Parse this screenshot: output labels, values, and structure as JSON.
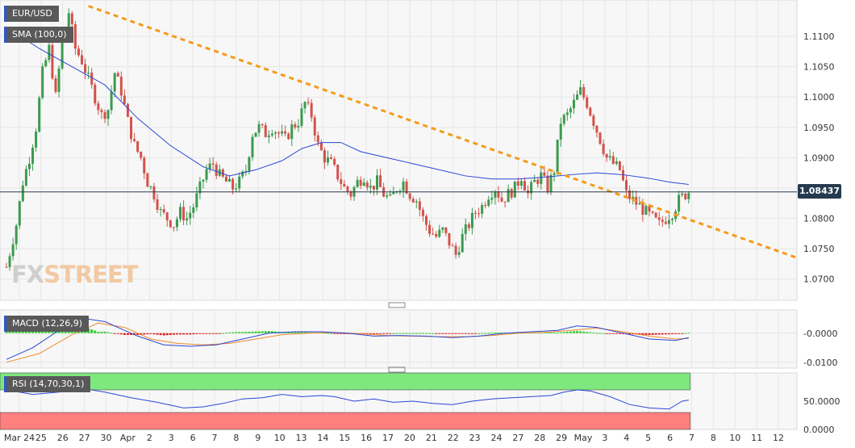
{
  "symbol": "EUR/USD",
  "indicators": {
    "sma_label": "SMA (100,0)",
    "macd_label": "MACD (12,26,9)",
    "rsi_label": "RSI (14,70,30,1)"
  },
  "logo": {
    "part1": "FX",
    "part2": "STREET"
  },
  "current_price": "1.08437",
  "colors": {
    "background": "#f7f7f7",
    "grid": "#e6e6e6",
    "bull_candle": "#3c9a4f",
    "bear_candle": "#d2524a",
    "sma_line": "#2b46d6",
    "trendline": "#f59a1a",
    "macd_line": "#2b46d6",
    "signal_line": "#f08a2a",
    "hist_positive": "#33cc33",
    "hist_negative": "#e02020",
    "rsi_overbought_zone": "#7ee87e",
    "rsi_oversold_zone": "#ff7f7f",
    "price_line": "#263a4f"
  },
  "chart_data": [
    {
      "type": "candlestick",
      "title": "EUR/USD",
      "x_tick_labels": [
        "Mar 24",
        "25",
        "26",
        "27",
        "30",
        "Apr",
        "2",
        "3",
        "6",
        "7",
        "8",
        "9",
        "10",
        "13",
        "14",
        "15",
        "16",
        "17",
        "20",
        "21",
        "22",
        "23",
        "24",
        "27",
        "28",
        "29",
        "May",
        "3",
        "4",
        "5",
        "6",
        "7",
        "8",
        "10",
        "11",
        "12"
      ],
      "y_tick_labels": [
        "1.1100",
        "1.1050",
        "1.1000",
        "1.0950",
        "1.0900",
        "1.0850",
        "1.0800",
        "1.0750",
        "1.0700"
      ],
      "ylim": [
        1.0665,
        1.116
      ],
      "approx_closes": [
        [
          0,
          1.072
        ],
        [
          3,
          1.079
        ],
        [
          5,
          1.086
        ],
        [
          7,
          1.09
        ],
        [
          9,
          1.095
        ],
        [
          11,
          1.104
        ],
        [
          13,
          1.108
        ],
        [
          15,
          1.1
        ],
        [
          17,
          1.109
        ],
        [
          19,
          1.114
        ],
        [
          21,
          1.108
        ],
        [
          23,
          1.106
        ],
        [
          25,
          1.103
        ],
        [
          27,
          1.1
        ],
        [
          29,
          1.097
        ],
        [
          31,
          1.098
        ],
        [
          33,
          1.104
        ],
        [
          35,
          1.101
        ],
        [
          37,
          1.096
        ],
        [
          39,
          1.092
        ],
        [
          41,
          1.09
        ],
        [
          43,
          1.086
        ],
        [
          45,
          1.084
        ],
        [
          47,
          1.081
        ],
        [
          49,
          1.08
        ],
        [
          51,
          1.079
        ],
        [
          53,
          1.081
        ],
        [
          55,
          1.08
        ],
        [
          57,
          1.082
        ],
        [
          59,
          1.085
        ],
        [
          61,
          1.088
        ],
        [
          63,
          1.089
        ],
        [
          65,
          1.087
        ],
        [
          67,
          1.086
        ],
        [
          69,
          1.085
        ],
        [
          71,
          1.086
        ],
        [
          73,
          1.088
        ],
        [
          75,
          1.094
        ],
        [
          77,
          1.095
        ],
        [
          79,
          1.094
        ],
        [
          81,
          1.095
        ],
        [
          83,
          1.094
        ],
        [
          85,
          1.093
        ],
        [
          87,
          1.095
        ],
        [
          89,
          1.096
        ],
        [
          91,
          1.099
        ],
        [
          93,
          1.097
        ],
        [
          95,
          1.092
        ],
        [
          97,
          1.09
        ],
        [
          99,
          1.089
        ],
        [
          101,
          1.087
        ],
        [
          103,
          1.085
        ],
        [
          105,
          1.084
        ],
        [
          107,
          1.086
        ],
        [
          109,
          1.087
        ],
        [
          111,
          1.085
        ],
        [
          113,
          1.086
        ],
        [
          115,
          1.084
        ],
        [
          117,
          1.083
        ],
        [
          119,
          1.085
        ],
        [
          121,
          1.086
        ],
        [
          123,
          1.084
        ],
        [
          125,
          1.083
        ],
        [
          127,
          1.08
        ],
        [
          129,
          1.078
        ],
        [
          131,
          1.077
        ],
        [
          133,
          1.078
        ],
        [
          135,
          1.076
        ],
        [
          137,
          1.074
        ],
        [
          139,
          1.077
        ],
        [
          141,
          1.079
        ],
        [
          143,
          1.081
        ],
        [
          145,
          1.082
        ],
        [
          147,
          1.084
        ],
        [
          149,
          1.085
        ],
        [
          151,
          1.083
        ],
        [
          153,
          1.084
        ],
        [
          155,
          1.085
        ],
        [
          157,
          1.087
        ],
        [
          159,
          1.084
        ],
        [
          161,
          1.086
        ],
        [
          163,
          1.087
        ],
        [
          165,
          1.085
        ],
        [
          167,
          1.088
        ],
        [
          169,
          1.096
        ],
        [
          171,
          1.097
        ],
        [
          173,
          1.099
        ],
        [
          175,
          1.101
        ],
        [
          177,
          1.099
        ],
        [
          179,
          1.096
        ],
        [
          181,
          1.093
        ],
        [
          183,
          1.09
        ],
        [
          185,
          1.089
        ],
        [
          187,
          1.088
        ],
        [
          189,
          1.084
        ],
        [
          191,
          1.083
        ],
        [
          193,
          1.082
        ],
        [
          195,
          1.081
        ],
        [
          197,
          1.08
        ],
        [
          199,
          1.079
        ],
        [
          201,
          1.08
        ],
        [
          203,
          1.081
        ],
        [
          205,
          1.083
        ],
        [
          207,
          1.084
        ],
        [
          208,
          1.0844
        ]
      ],
      "sma_100": [
        [
          0,
          1.1115
        ],
        [
          10,
          1.108
        ],
        [
          20,
          1.105
        ],
        [
          30,
          1.102
        ],
        [
          40,
          1.0965
        ],
        [
          50,
          1.092
        ],
        [
          60,
          1.0885
        ],
        [
          68,
          1.087
        ],
        [
          76,
          1.088
        ],
        [
          84,
          1.0895
        ],
        [
          90,
          1.0915
        ],
        [
          96,
          1.0925
        ],
        [
          102,
          1.0925
        ],
        [
          108,
          1.091
        ],
        [
          116,
          1.09
        ],
        [
          124,
          1.089
        ],
        [
          132,
          1.088
        ],
        [
          140,
          1.087
        ],
        [
          148,
          1.0865
        ],
        [
          156,
          1.0865
        ],
        [
          164,
          1.0868
        ],
        [
          172,
          1.0872
        ],
        [
          180,
          1.0875
        ],
        [
          188,
          1.0872
        ],
        [
          196,
          1.0866
        ],
        [
          202,
          1.086
        ],
        [
          208,
          1.0856
        ]
      ],
      "trendline": [
        [
          25,
          1.115
        ],
        [
          241,
          1.0735
        ]
      ]
    },
    {
      "type": "macd",
      "title": "MACD (12,26,9)",
      "y_tick_labels": [
        "-0.0000",
        "-0.0100"
      ],
      "ylim": [
        -0.012,
        0.008
      ],
      "macd": [
        [
          0,
          -0.009
        ],
        [
          8,
          -0.005
        ],
        [
          16,
          0.001
        ],
        [
          24,
          0.005
        ],
        [
          30,
          0.004
        ],
        [
          40,
          -0.001
        ],
        [
          48,
          -0.004
        ],
        [
          56,
          -0.0045
        ],
        [
          64,
          -0.004
        ],
        [
          72,
          -0.002
        ],
        [
          80,
          0.0
        ],
        [
          88,
          0.0005
        ],
        [
          96,
          0.0005
        ],
        [
          104,
          0.0
        ],
        [
          112,
          -0.001
        ],
        [
          120,
          -0.0008
        ],
        [
          128,
          -0.001
        ],
        [
          136,
          -0.0015
        ],
        [
          144,
          -0.001
        ],
        [
          152,
          0.0
        ],
        [
          160,
          0.0005
        ],
        [
          168,
          0.001
        ],
        [
          174,
          0.0025
        ],
        [
          180,
          0.002
        ],
        [
          188,
          0.0
        ],
        [
          196,
          -0.002
        ],
        [
          204,
          -0.0025
        ],
        [
          208,
          -0.0015
        ]
      ],
      "signal": [
        [
          0,
          -0.01
        ],
        [
          10,
          -0.007
        ],
        [
          20,
          -0.0005
        ],
        [
          28,
          0.0035
        ],
        [
          36,
          0.002
        ],
        [
          44,
          -0.002
        ],
        [
          52,
          -0.0035
        ],
        [
          60,
          -0.004
        ],
        [
          68,
          -0.0035
        ],
        [
          76,
          -0.002
        ],
        [
          84,
          -0.0005
        ],
        [
          92,
          0.0
        ],
        [
          100,
          0.0003
        ],
        [
          108,
          -0.0002
        ],
        [
          116,
          -0.0008
        ],
        [
          124,
          -0.001
        ],
        [
          132,
          -0.0012
        ],
        [
          140,
          -0.0012
        ],
        [
          148,
          -0.0008
        ],
        [
          156,
          0.0
        ],
        [
          164,
          0.0003
        ],
        [
          172,
          0.001
        ],
        [
          180,
          0.0018
        ],
        [
          188,
          0.0005
        ],
        [
          196,
          -0.001
        ],
        [
          204,
          -0.002
        ],
        [
          208,
          -0.0018
        ]
      ]
    },
    {
      "type": "rsi",
      "title": "RSI (14,70,30,1)",
      "y_tick_labels": [
        "50.0000",
        "0.0000"
      ],
      "ylim": [
        0,
        100
      ],
      "overbought": 70,
      "oversold": 30,
      "values": [
        [
          0,
          70
        ],
        [
          8,
          62
        ],
        [
          16,
          66
        ],
        [
          24,
          72
        ],
        [
          30,
          66
        ],
        [
          38,
          56
        ],
        [
          46,
          48
        ],
        [
          54,
          38
        ],
        [
          60,
          40
        ],
        [
          66,
          46
        ],
        [
          72,
          54
        ],
        [
          78,
          56
        ],
        [
          84,
          62
        ],
        [
          90,
          58
        ],
        [
          96,
          60
        ],
        [
          100,
          58
        ],
        [
          106,
          50
        ],
        [
          112,
          54
        ],
        [
          118,
          48
        ],
        [
          124,
          50
        ],
        [
          130,
          46
        ],
        [
          136,
          44
        ],
        [
          142,
          50
        ],
        [
          148,
          54
        ],
        [
          154,
          56
        ],
        [
          160,
          58
        ],
        [
          166,
          60
        ],
        [
          170,
          66
        ],
        [
          174,
          70
        ],
        [
          178,
          68
        ],
        [
          184,
          58
        ],
        [
          190,
          44
        ],
        [
          196,
          38
        ],
        [
          202,
          36
        ],
        [
          206,
          50
        ],
        [
          208,
          52
        ]
      ]
    }
  ]
}
